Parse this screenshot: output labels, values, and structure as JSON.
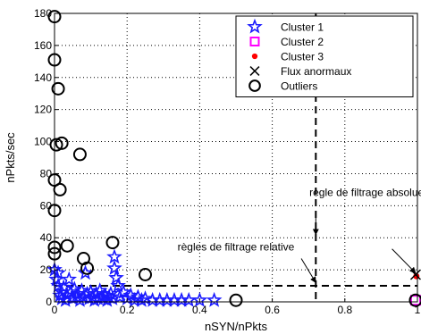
{
  "chart_data": {
    "type": "scatter",
    "xlabel": "nSYN/nPkts",
    "ylabel": "nPkts/sec",
    "xlim": [
      0,
      1
    ],
    "ylim": [
      0,
      180
    ],
    "xticks": [
      0,
      0.2,
      0.4,
      0.6,
      0.8,
      1
    ],
    "xtick_labels": [
      "0",
      "0.2",
      "0.4",
      "0.6",
      "0.8",
      "1"
    ],
    "yticks": [
      0,
      20,
      40,
      60,
      80,
      100,
      120,
      140,
      160,
      180
    ],
    "ytick_labels": [
      "0",
      "20",
      "40",
      "60",
      "80",
      "100",
      "120",
      "140",
      "160",
      "180"
    ],
    "grid": "dotted",
    "legend_position": "top-right",
    "series": [
      {
        "name": "Cluster 1",
        "marker": "star",
        "color": "#1a1aff",
        "points": [
          [
            0.0,
            20
          ],
          [
            0.005,
            14
          ],
          [
            0.01,
            18
          ],
          [
            0.01,
            10
          ],
          [
            0.015,
            4
          ],
          [
            0.02,
            6
          ],
          [
            0.02,
            2
          ],
          [
            0.025,
            9
          ],
          [
            0.03,
            1
          ],
          [
            0.035,
            4
          ],
          [
            0.04,
            14
          ],
          [
            0.045,
            6
          ],
          [
            0.05,
            2
          ],
          [
            0.055,
            8
          ],
          [
            0.06,
            3
          ],
          [
            0.065,
            5
          ],
          [
            0.07,
            1
          ],
          [
            0.075,
            7
          ],
          [
            0.08,
            3
          ],
          [
            0.085,
            18
          ],
          [
            0.09,
            5
          ],
          [
            0.095,
            2
          ],
          [
            0.1,
            6
          ],
          [
            0.105,
            3
          ],
          [
            0.11,
            1
          ],
          [
            0.115,
            5
          ],
          [
            0.12,
            2
          ],
          [
            0.125,
            7
          ],
          [
            0.13,
            3
          ],
          [
            0.135,
            2
          ],
          [
            0.14,
            4
          ],
          [
            0.145,
            1
          ],
          [
            0.15,
            3
          ],
          [
            0.155,
            5
          ],
          [
            0.16,
            2
          ],
          [
            0.165,
            28
          ],
          [
            0.165,
            21
          ],
          [
            0.17,
            15
          ],
          [
            0.175,
            10
          ],
          [
            0.18,
            3
          ],
          [
            0.19,
            6
          ],
          [
            0.2,
            2
          ],
          [
            0.21,
            4
          ],
          [
            0.22,
            1
          ],
          [
            0.23,
            3
          ],
          [
            0.24,
            1
          ],
          [
            0.25,
            2
          ],
          [
            0.27,
            1
          ],
          [
            0.29,
            1
          ],
          [
            0.31,
            1
          ],
          [
            0.33,
            1
          ],
          [
            0.35,
            1
          ],
          [
            0.37,
            1
          ],
          [
            0.4,
            1
          ],
          [
            0.44,
            1
          ]
        ]
      },
      {
        "name": "Cluster 2",
        "marker": "square",
        "color": "#ff00ff",
        "points": [
          [
            0.995,
            1
          ]
        ]
      },
      {
        "name": "Cluster 3",
        "marker": "dot",
        "color": "#ff0000",
        "points": [
          [
            0.997,
            16
          ]
        ]
      },
      {
        "name": "Flux anormaux",
        "marker": "x",
        "color": "#000000",
        "points": [
          [
            0.995,
            17
          ]
        ]
      },
      {
        "name": "Outliers",
        "marker": "circle",
        "color": "#000000",
        "points": [
          [
            0.0,
            178
          ],
          [
            0.0,
            151
          ],
          [
            0.01,
            133
          ],
          [
            0.005,
            98
          ],
          [
            0.02,
            99
          ],
          [
            0.0,
            76
          ],
          [
            0.015,
            70
          ],
          [
            0.0,
            57
          ],
          [
            0.07,
            92
          ],
          [
            0.0,
            34
          ],
          [
            0.035,
            35
          ],
          [
            0.0,
            30
          ],
          [
            0.08,
            27
          ],
          [
            0.09,
            21
          ],
          [
            0.16,
            37
          ],
          [
            0.25,
            17
          ],
          [
            0.5,
            1
          ],
          [
            0.995,
            1
          ]
        ]
      }
    ],
    "threshold_lines": [
      {
        "orientation": "vertical",
        "x": 0.72,
        "style": "dashed"
      },
      {
        "orientation": "horizontal",
        "y": 10,
        "x_range": [
          0,
          1
        ],
        "style": "dashed"
      }
    ],
    "annotations": [
      {
        "text": "règle de filtrage absolue",
        "text_at": [
          0.86,
          66
        ],
        "arrow_from": [
          0.72,
          56
        ],
        "arrow_to": [
          0.72,
          42
        ],
        "arrow2_from": [
          0.93,
          33
        ],
        "arrow2_to": [
          0.995,
          18
        ]
      },
      {
        "text": "règles de filtrage relative",
        "text_at": [
          0.5,
          32
        ],
        "arrow_from": [
          0.68,
          27
        ],
        "arrow_to": [
          0.72,
          12
        ]
      }
    ]
  }
}
